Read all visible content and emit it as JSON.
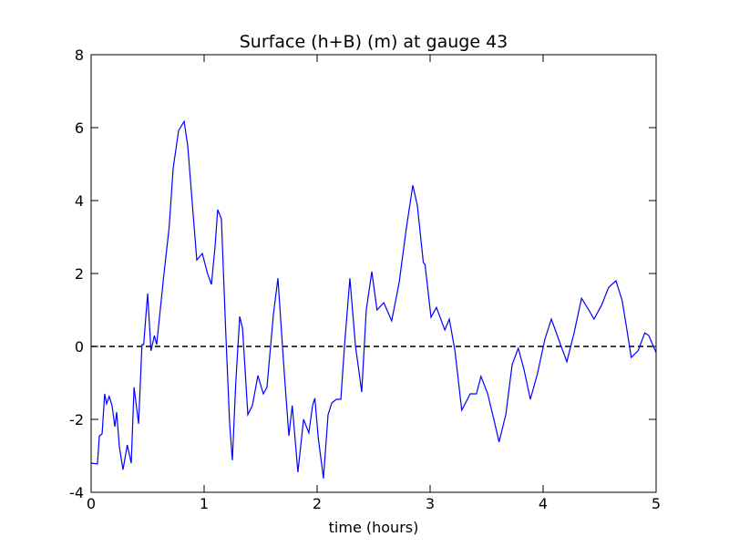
{
  "chart_data": {
    "type": "line",
    "title": "Surface (h+B) (m) at gauge 43",
    "x_label": "time (hours)",
    "x": [
      0,
      0.056,
      0.073,
      0.097,
      0.12,
      0.137,
      0.16,
      0.185,
      0.21,
      0.226,
      0.25,
      0.282,
      0.32,
      0.355,
      0.38,
      0.42,
      0.45,
      0.465,
      0.5,
      0.53,
      0.56,
      0.58,
      0.645,
      0.69,
      0.726,
      0.774,
      0.823,
      0.855,
      0.887,
      0.935,
      0.984,
      1.03,
      1.065,
      1.097,
      1.12,
      1.153,
      1.19,
      1.226,
      1.25,
      1.28,
      1.315,
      1.34,
      1.387,
      1.427,
      1.476,
      1.524,
      1.556,
      1.613,
      1.653,
      1.71,
      1.75,
      1.78,
      1.83,
      1.88,
      1.927,
      1.96,
      1.98,
      2.01,
      2.056,
      2.097,
      2.13,
      2.17,
      2.21,
      2.242,
      2.29,
      2.34,
      2.395,
      2.435,
      2.484,
      2.53,
      2.59,
      2.66,
      2.726,
      2.79,
      2.847,
      2.887,
      2.94,
      2.955,
      3.008,
      3.056,
      3.13,
      3.17,
      3.22,
      3.28,
      3.355,
      3.41,
      3.45,
      3.51,
      3.573,
      3.61,
      3.67,
      3.726,
      3.78,
      3.83,
      3.887,
      3.95,
      4.016,
      4.073,
      4.137,
      4.21,
      4.274,
      4.34,
      4.395,
      4.45,
      4.516,
      4.58,
      4.645,
      4.7,
      4.742,
      4.78,
      4.84,
      4.9,
      4.935,
      5
    ],
    "series": [
      {
        "name": "Surface",
        "color": "#0000ff",
        "values": [
          -3.2,
          -3.22,
          -2.45,
          -2.4,
          -1.3,
          -1.57,
          -1.37,
          -1.62,
          -2.2,
          -1.8,
          -2.75,
          -3.38,
          -2.7,
          -3.2,
          -1.12,
          -2.12,
          0.05,
          0.05,
          1.45,
          -0.12,
          0.3,
          0.05,
          2,
          3.25,
          4.88,
          5.92,
          6.17,
          5.5,
          4.25,
          2.37,
          2.55,
          2,
          1.7,
          2.75,
          3.75,
          3.5,
          0.5,
          -2.12,
          -3.12,
          -1,
          0.82,
          0.5,
          -1.87,
          -1.62,
          -0.8,
          -1.3,
          -1.12,
          0.87,
          1.87,
          -0.75,
          -2.45,
          -1.62,
          -3.45,
          -2,
          -2.37,
          -1.62,
          -1.42,
          -2.5,
          -3.62,
          -1.87,
          -1.55,
          -1.45,
          -1.45,
          0,
          1.87,
          0,
          -1.25,
          1,
          2.05,
          1,
          1.2,
          0.7,
          1.75,
          3.25,
          4.42,
          3.87,
          2.3,
          2.25,
          0.8,
          1.07,
          0.45,
          0.75,
          -0.12,
          -1.75,
          -1.3,
          -1.3,
          -0.82,
          -1.3,
          -2.12,
          -2.62,
          -1.87,
          -0.5,
          -0.05,
          -0.62,
          -1.45,
          -0.75,
          0.2,
          0.75,
          0.2,
          -0.42,
          0.37,
          1.32,
          1.05,
          0.75,
          1.12,
          1.62,
          1.8,
          1.25,
          0.45,
          -0.3,
          -0.12,
          0.37,
          0.3,
          -0.17
        ]
      }
    ],
    "hline": 0,
    "xlim": [
      0,
      5
    ],
    "xticks": [
      0,
      1,
      2,
      3,
      4,
      5
    ],
    "ylim": [
      -4,
      8
    ],
    "yticks": [
      -4,
      -2,
      0,
      2,
      4,
      6,
      8
    ]
  }
}
